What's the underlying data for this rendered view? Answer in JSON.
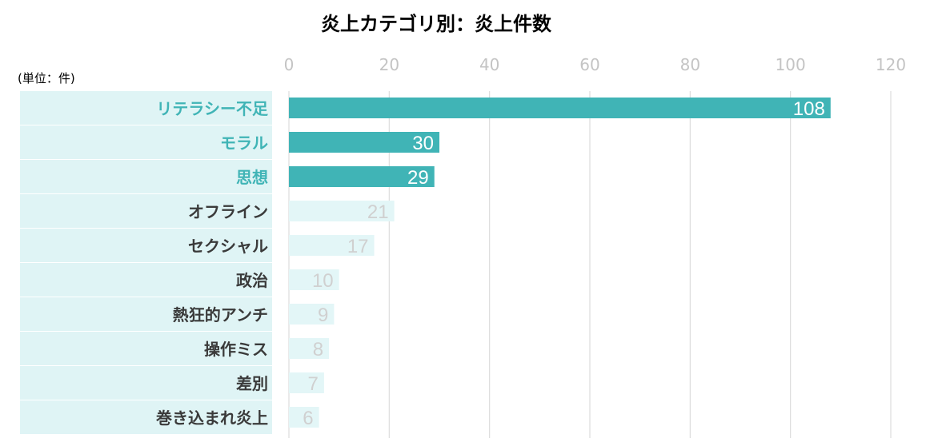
{
  "chart_data": {
    "type": "bar",
    "orientation": "horizontal",
    "title": "炎上カテゴリ別：炎上件数",
    "unit_label": "(単位：件)",
    "categories": [
      "リテラシー不足",
      "モラル",
      "思想",
      "オフライン",
      "セクシャル",
      "政治",
      "熱狂的アンチ",
      "操作ミス",
      "差別",
      "巻き込まれ炎上"
    ],
    "values": [
      108,
      30,
      29,
      21,
      17,
      10,
      9,
      8,
      7,
      6
    ],
    "highlighted": [
      true,
      true,
      true,
      false,
      false,
      false,
      false,
      false,
      false,
      false
    ],
    "xlim": [
      0,
      120
    ],
    "ticks": [
      0,
      20,
      40,
      60,
      80,
      100,
      120
    ],
    "grid": true,
    "colors": {
      "highlight_bar": "#40b4b6",
      "muted_bar": "#e3f6f7",
      "label_band": "#dff4f5",
      "highlight_text": "#40b4b6",
      "normal_text": "#3a3a3a",
      "highlight_value_text": "#ffffff",
      "muted_value_text": "#d0d0d0",
      "grid": "#dddddd",
      "tick_text": "#c4c4c4",
      "title": "#40b4b6"
    }
  }
}
